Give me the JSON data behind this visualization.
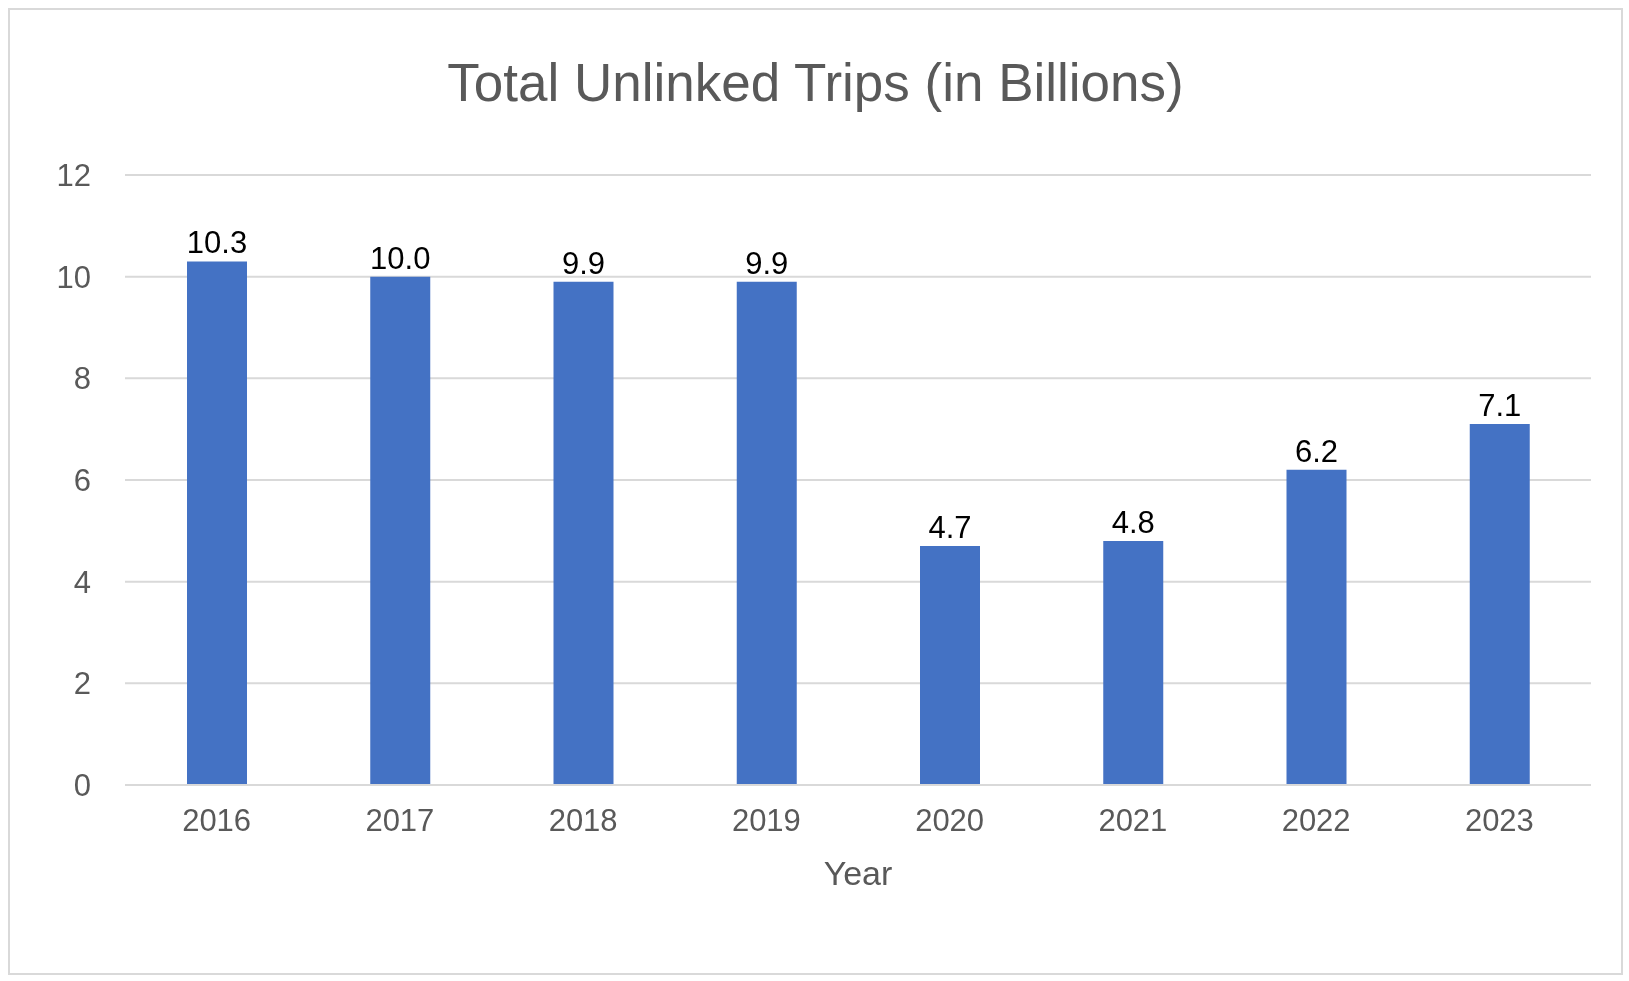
{
  "chart_data": {
    "type": "bar",
    "title": "Total Unlinked Trips (in Billions)",
    "xlabel": "Year",
    "categories": [
      "2016",
      "2017",
      "2018",
      "2019",
      "2020",
      "2021",
      "2022",
      "2023"
    ],
    "values": [
      10.3,
      10.0,
      9.9,
      9.9,
      4.7,
      4.8,
      6.2,
      7.1
    ],
    "value_labels": [
      "10.3",
      "10.0",
      "9.9",
      "9.9",
      "4.7",
      "4.8",
      "6.2",
      "7.1"
    ],
    "color": "#4472c4",
    "ylim": [
      0,
      12
    ],
    "yticks": [
      0,
      2,
      4,
      6,
      8,
      10,
      12
    ],
    "grid": "y",
    "legend": false
  }
}
